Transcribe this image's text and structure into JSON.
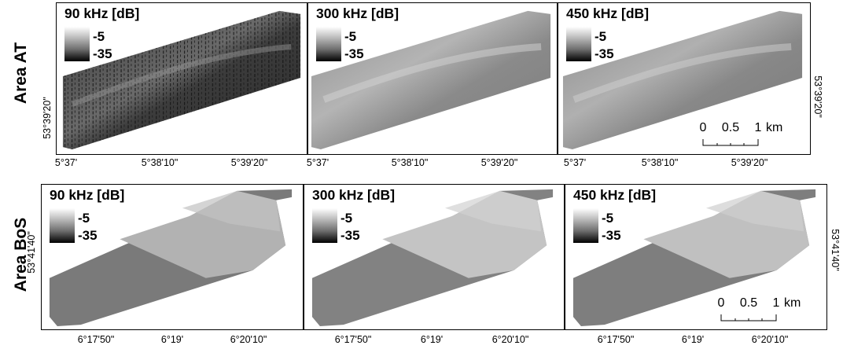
{
  "rows": [
    {
      "label": "Area AT",
      "lat_label": "53°39'20\"",
      "ticks": [
        "5°37'",
        "5°38'10\"",
        "5°39'20\""
      ],
      "panels": [
        {
          "title": "90 kHz [dB]",
          "legend_max": "-5",
          "legend_min": "-35"
        },
        {
          "title": "300 kHz [dB]",
          "legend_max": "-5",
          "legend_min": "-35"
        },
        {
          "title": "450 kHz [dB]",
          "legend_max": "-5",
          "legend_min": "-35"
        }
      ]
    },
    {
      "label": "Area BoS",
      "lat_label": "53°41'40\"",
      "ticks": [
        "6°17'50\"",
        "6°19'",
        "6°20'10\""
      ],
      "panels": [
        {
          "title": "90 kHz [dB]",
          "legend_max": "-5",
          "legend_min": "-35"
        },
        {
          "title": "300 kHz [dB]",
          "legend_max": "-5",
          "legend_min": "-35"
        },
        {
          "title": "450 kHz [dB]",
          "legend_max": "-5",
          "legend_min": "-35"
        }
      ]
    }
  ],
  "scale_bar": {
    "labels": [
      "0",
      "0.5",
      "1"
    ],
    "unit": "km"
  }
}
